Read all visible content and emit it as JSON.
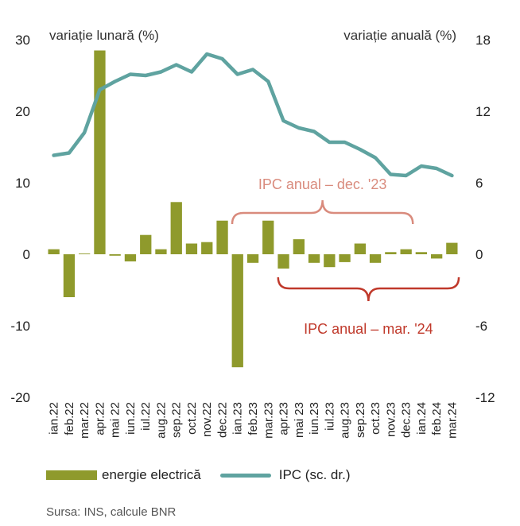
{
  "chart_data": {
    "type": "bar+line",
    "left_axis_title": "variație lunară (%)",
    "right_axis_title": "variație anuală (%)",
    "left_ylim": [
      -20,
      30
    ],
    "right_ylim": [
      -12,
      18
    ],
    "left_ticks": [
      "30",
      "20",
      "10",
      "0",
      "-10",
      "-20"
    ],
    "right_ticks": [
      "18",
      "12",
      "6",
      "0",
      "-6",
      "-12"
    ],
    "categories": [
      "ian.22",
      "feb.22",
      "mar.22",
      "apr.22",
      "mai 22",
      "iun.22",
      "iul.22",
      "aug.22",
      "sep.22",
      "oct.22",
      "nov.22",
      "dec.22",
      "ian.23",
      "feb.23",
      "mar.23",
      "apr.23",
      "mai 23",
      "iun.23",
      "iul.23",
      "aug.23",
      "sep.23",
      "oct.23",
      "nov.23",
      "dec.23",
      "ian.24",
      "feb.24",
      "mar.24"
    ],
    "series": [
      {
        "name": "energie electrică",
        "type": "bar",
        "axis": "left",
        "color": "#8f9a2c",
        "values": [
          0.7,
          -6.0,
          0.1,
          28.5,
          -0.2,
          -1.0,
          2.7,
          0.7,
          7.3,
          1.5,
          1.7,
          4.7,
          -15.8,
          -1.2,
          4.7,
          -2.0,
          2.1,
          -1.2,
          -1.8,
          -1.1,
          1.5,
          -1.2,
          0.3,
          0.7,
          0.3,
          -0.6,
          1.6
        ]
      },
      {
        "name": "IPC (sc. dr.)",
        "type": "line",
        "axis": "right",
        "color": "#5fa3a0",
        "values": [
          8.3,
          8.5,
          10.2,
          13.8,
          14.5,
          15.1,
          15.0,
          15.3,
          15.9,
          15.3,
          16.8,
          16.4,
          15.1,
          15.5,
          14.5,
          11.2,
          10.6,
          10.3,
          9.4,
          9.4,
          8.8,
          8.1,
          6.7,
          6.6,
          7.4,
          7.2,
          6.6
        ]
      }
    ],
    "annotations": [
      {
        "text": "IPC anual – dec. '23",
        "color": "#d98b7d",
        "from": "ian.23",
        "to": "dec.23",
        "side": "above"
      },
      {
        "text": "IPC anual – mar. '24",
        "color": "#c0392b",
        "from": "apr.23",
        "to": "mar.24",
        "side": "below"
      }
    ],
    "legend_position": "bottom",
    "grid": false
  },
  "legend": {
    "bar_label": "energie electrică",
    "line_label": "IPC (sc. dr.)"
  },
  "source": "Sursa: INS, calcule BNR"
}
